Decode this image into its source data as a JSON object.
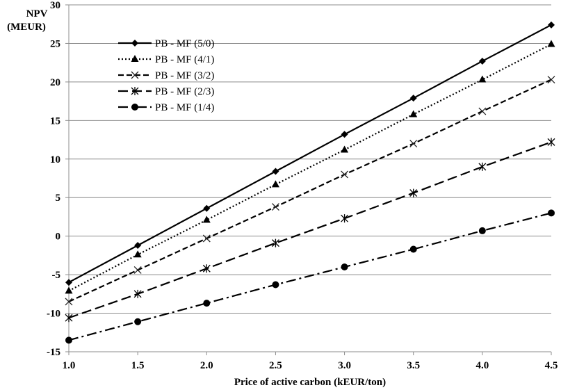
{
  "chart_data": {
    "type": "line",
    "title": "",
    "ylabel_line1": "NPV",
    "ylabel_line2": "(MEUR)",
    "xlabel": "Price of active carbon (kEUR/ton)",
    "xlim": [
      1.0,
      4.5
    ],
    "ylim": [
      -15,
      30
    ],
    "x_ticks": [
      1.0,
      1.5,
      2.0,
      2.5,
      3.0,
      3.5,
      4.0,
      4.5
    ],
    "x_tick_labels": [
      "1.0",
      "1.5",
      "2.0",
      "2.5",
      "3.0",
      "3.5",
      "4.0",
      "4.5"
    ],
    "y_ticks": [
      -15,
      -10,
      -5,
      0,
      5,
      10,
      15,
      20,
      25,
      30
    ],
    "y_tick_labels": [
      "-15",
      "-10",
      "-5",
      "0",
      "5",
      "10",
      "15",
      "20",
      "25",
      "30"
    ],
    "grid": true,
    "legend_position": "upper-left",
    "x": [
      1.0,
      1.5,
      2.0,
      2.5,
      3.0,
      3.5,
      4.0,
      4.5
    ],
    "series": [
      {
        "name": "PB - MF (5/0)",
        "marker": "diamond",
        "line": "solid",
        "values": [
          -6.0,
          -1.2,
          3.6,
          8.4,
          13.2,
          17.9,
          22.7,
          27.4
        ]
      },
      {
        "name": "PB - MF (4/1)",
        "marker": "triangle",
        "line": "dotted",
        "values": [
          -7.1,
          -2.4,
          2.1,
          6.7,
          11.2,
          15.8,
          20.3,
          24.9
        ]
      },
      {
        "name": "PB - MF (3/2)",
        "marker": "x",
        "line": "dashed",
        "values": [
          -8.5,
          -4.4,
          -0.3,
          3.8,
          8.0,
          12.0,
          16.2,
          20.3
        ]
      },
      {
        "name": "PB - MF (2/3)",
        "marker": "asterisk",
        "line": "long-dash",
        "values": [
          -10.6,
          -7.5,
          -4.2,
          -0.9,
          2.3,
          5.6,
          9.0,
          12.2
        ]
      },
      {
        "name": "PB - MF (1/4)",
        "marker": "circle",
        "line": "dash-dot",
        "values": [
          -13.5,
          -11.1,
          -8.7,
          -6.3,
          -4.0,
          -1.7,
          0.7,
          3.0
        ]
      }
    ]
  }
}
